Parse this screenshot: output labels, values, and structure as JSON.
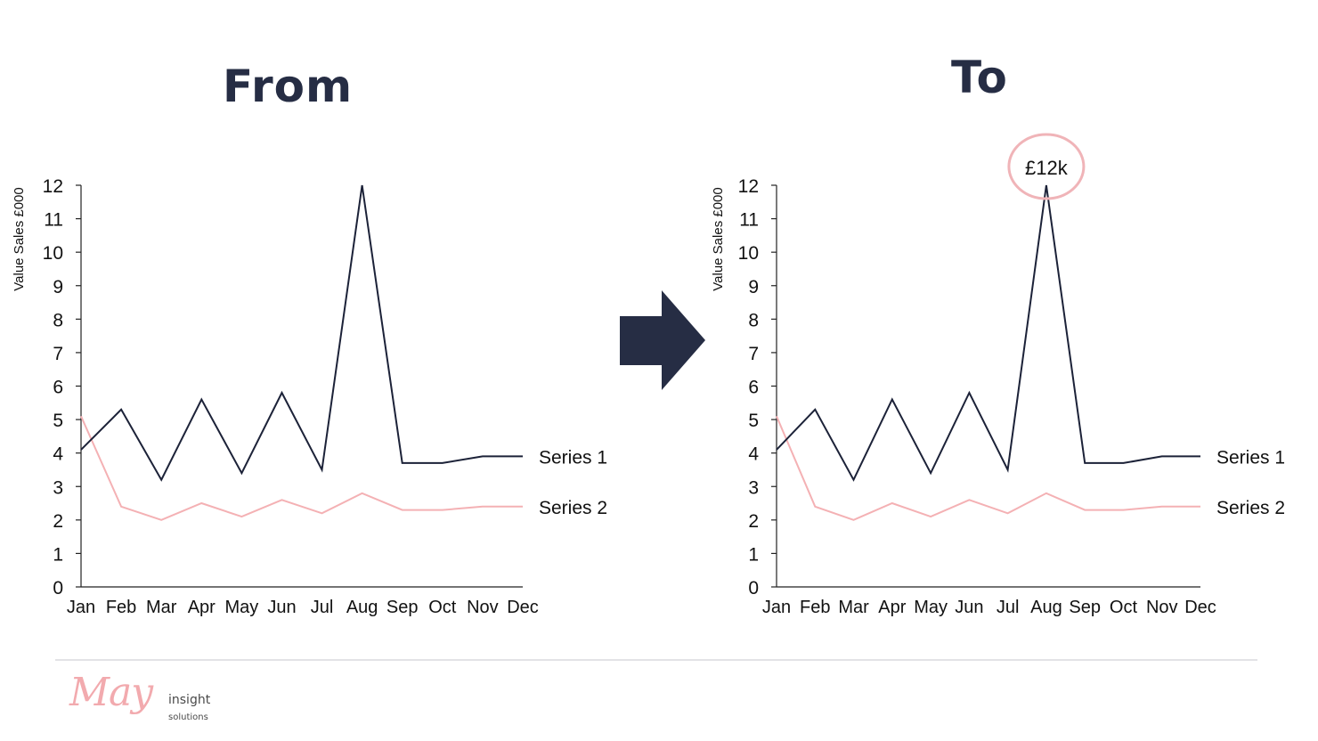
{
  "headings": {
    "from": "From",
    "to": "To"
  },
  "colors": {
    "series1": "#1c2238",
    "series2": "#f4b1b4",
    "arrow": "#262d44",
    "highlight": "#f0b4b8"
  },
  "arrow_icon": "right-arrow-icon",
  "chart_data": [
    {
      "type": "line",
      "title": "",
      "ylabel": "Value Sales £000",
      "xlabel": "",
      "categories": [
        "Jan",
        "Feb",
        "Mar",
        "Apr",
        "May",
        "Jun",
        "Jul",
        "Aug",
        "Sep",
        "Oct",
        "Nov",
        "Dec"
      ],
      "ylim": [
        0,
        12
      ],
      "yticks": [
        0,
        1,
        2,
        3,
        4,
        5,
        6,
        7,
        8,
        9,
        10,
        11,
        12
      ],
      "grid": false,
      "legend": "direct labels at right end of lines",
      "series": [
        {
          "name": "Series 1",
          "values": [
            4.1,
            5.3,
            3.2,
            5.6,
            3.4,
            5.8,
            3.5,
            12.0,
            3.7,
            3.7,
            3.9,
            3.9
          ]
        },
        {
          "name": "Series 2",
          "values": [
            5.1,
            2.4,
            2.0,
            2.5,
            2.1,
            2.6,
            2.2,
            2.8,
            2.3,
            2.3,
            2.4,
            2.4
          ]
        }
      ]
    },
    {
      "type": "line",
      "title": "",
      "ylabel": "Value Sales £000",
      "xlabel": "",
      "categories": [
        "Jan",
        "Feb",
        "Mar",
        "Apr",
        "May",
        "Jun",
        "Jul",
        "Aug",
        "Sep",
        "Oct",
        "Nov",
        "Dec"
      ],
      "ylim": [
        0,
        12
      ],
      "yticks": [
        0,
        1,
        2,
        3,
        4,
        5,
        6,
        7,
        8,
        9,
        10,
        11,
        12
      ],
      "grid": false,
      "legend": "direct labels at right end of lines",
      "series": [
        {
          "name": "Series 1",
          "values": [
            4.1,
            5.3,
            3.2,
            5.6,
            3.4,
            5.8,
            3.5,
            12.0,
            3.7,
            3.7,
            3.9,
            3.9
          ]
        },
        {
          "name": "Series 2",
          "values": [
            5.1,
            2.4,
            2.0,
            2.5,
            2.1,
            2.6,
            2.2,
            2.8,
            2.3,
            2.3,
            2.4,
            2.4
          ]
        }
      ],
      "annotation": {
        "text": "£12k",
        "series": 0,
        "category": "Aug",
        "value": 12.0
      }
    }
  ],
  "logo": {
    "script": "May",
    "line1": "insight",
    "line2": "solutions"
  }
}
